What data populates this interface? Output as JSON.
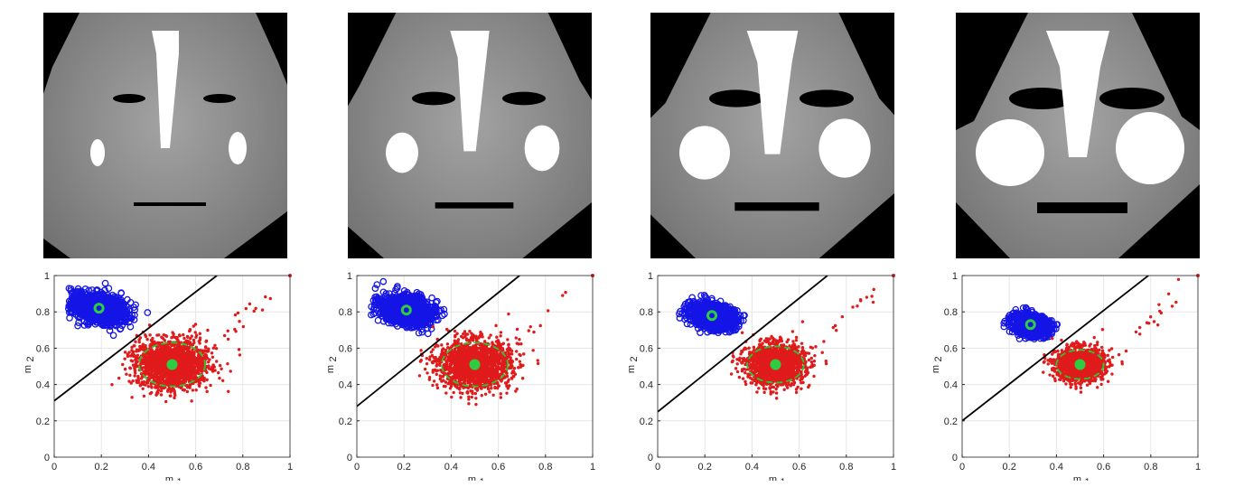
{
  "figure": {
    "panels": [
      {
        "face": "face-image-1",
        "blue_n": 1100,
        "red_n": 1900,
        "blue_center": [
          0.19,
          0.82
        ],
        "red_center": [
          0.5,
          0.51
        ],
        "blue_spread": [
          0.055,
          0.035
        ],
        "red_spread": [
          0.075,
          0.065
        ],
        "line": [
          [
            0,
            0.31
          ],
          [
            0.69,
            1.0
          ]
        ],
        "circle_r": [
          0.14,
          0.12
        ]
      },
      {
        "face": "face-image-2",
        "blue_n": 1100,
        "red_n": 1900,
        "blue_center": [
          0.21,
          0.81
        ],
        "red_center": [
          0.5,
          0.51
        ],
        "blue_spread": [
          0.055,
          0.035
        ],
        "red_spread": [
          0.075,
          0.065
        ],
        "line": [
          [
            0,
            0.28
          ],
          [
            0.69,
            1.0
          ]
        ],
        "circle_r": [
          0.14,
          0.12
        ]
      },
      {
        "face": "face-image-3",
        "blue_n": 1000,
        "red_n": 1700,
        "blue_center": [
          0.23,
          0.78
        ],
        "red_center": [
          0.5,
          0.51
        ],
        "blue_spread": [
          0.05,
          0.03
        ],
        "red_spread": [
          0.06,
          0.055
        ],
        "line": [
          [
            0,
            0.25
          ],
          [
            0.72,
            1.0
          ]
        ],
        "circle_r": [
          0.12,
          0.1
        ]
      },
      {
        "face": "face-image-4",
        "blue_n": 900,
        "red_n": 1500,
        "blue_center": [
          0.29,
          0.73
        ],
        "red_center": [
          0.5,
          0.51
        ],
        "blue_spread": [
          0.04,
          0.025
        ],
        "red_spread": [
          0.05,
          0.045
        ],
        "line": [
          [
            0,
            0.2
          ],
          [
            0.79,
            1.0
          ]
        ],
        "circle_r": [
          0.1,
          0.08
        ]
      }
    ]
  },
  "chart_data": [
    {
      "type": "scatter",
      "xlabel": "m",
      "xlabel_sub": "1",
      "ylabel": "m",
      "ylabel_sub": "2",
      "xlim": [
        0,
        1
      ],
      "ylim": [
        0,
        1
      ],
      "grid": true,
      "xticks": [
        "0",
        "0.2",
        "0.4",
        "0.6",
        "0.8",
        "1"
      ],
      "yticks": [
        "0",
        "0.2",
        "0.4",
        "0.6",
        "0.8",
        "1"
      ],
      "series": [
        {
          "marker": "blue-circles",
          "color": "#1515e6",
          "center": [
            0.19,
            0.82
          ]
        },
        {
          "marker": "red-dots",
          "color": "#e01b1b",
          "center": [
            0.5,
            0.51
          ]
        }
      ],
      "centroids": [
        [
          0.19,
          0.82
        ],
        [
          0.5,
          0.51
        ]
      ],
      "decision_line": [
        [
          0,
          0.31
        ],
        [
          0.69,
          1.0
        ]
      ],
      "outlier": [
        1.0,
        1.0
      ]
    },
    {
      "type": "scatter",
      "xlabel": "m",
      "xlabel_sub": "1",
      "ylabel": "m",
      "ylabel_sub": "2",
      "xlim": [
        0,
        1
      ],
      "ylim": [
        0,
        1
      ],
      "grid": true,
      "xticks": [
        "0",
        "0.2",
        "0.4",
        "0.6",
        "0.8",
        "1"
      ],
      "yticks": [
        "0",
        "0.2",
        "0.4",
        "0.6",
        "0.8",
        "1"
      ],
      "series": [
        {
          "marker": "blue-circles",
          "color": "#1515e6",
          "center": [
            0.21,
            0.81
          ]
        },
        {
          "marker": "red-dots",
          "color": "#e01b1b",
          "center": [
            0.5,
            0.51
          ]
        }
      ],
      "centroids": [
        [
          0.21,
          0.81
        ],
        [
          0.5,
          0.51
        ]
      ],
      "decision_line": [
        [
          0,
          0.28
        ],
        [
          0.69,
          1.0
        ]
      ],
      "outlier": [
        1.0,
        1.0
      ]
    },
    {
      "type": "scatter",
      "xlabel": "m",
      "xlabel_sub": "1",
      "ylabel": "m",
      "ylabel_sub": "2",
      "xlim": [
        0,
        1
      ],
      "ylim": [
        0,
        1
      ],
      "grid": true,
      "xticks": [
        "0",
        "0.2",
        "0.4",
        "0.6",
        "0.8",
        "1"
      ],
      "yticks": [
        "0",
        "0.2",
        "0.4",
        "0.6",
        "0.8",
        "1"
      ],
      "series": [
        {
          "marker": "blue-circles",
          "color": "#1515e6",
          "center": [
            0.23,
            0.78
          ]
        },
        {
          "marker": "red-dots",
          "color": "#e01b1b",
          "center": [
            0.5,
            0.51
          ]
        }
      ],
      "centroids": [
        [
          0.23,
          0.78
        ],
        [
          0.5,
          0.51
        ]
      ],
      "decision_line": [
        [
          0,
          0.25
        ],
        [
          0.72,
          1.0
        ]
      ],
      "outlier": [
        1.0,
        1.0
      ]
    },
    {
      "type": "scatter",
      "xlabel": "m",
      "xlabel_sub": "1",
      "ylabel": "m",
      "ylabel_sub": "2",
      "xlim": [
        0,
        1
      ],
      "ylim": [
        0,
        1
      ],
      "grid": true,
      "xticks": [
        "0",
        "0.2",
        "0.4",
        "0.6",
        "0.8",
        "1"
      ],
      "yticks": [
        "0",
        "0.2",
        "0.4",
        "0.6",
        "0.8",
        "1"
      ],
      "series": [
        {
          "marker": "blue-circles",
          "color": "#1515e6",
          "center": [
            0.29,
            0.73
          ]
        },
        {
          "marker": "red-dots",
          "color": "#e01b1b",
          "center": [
            0.5,
            0.51
          ]
        }
      ],
      "centroids": [
        [
          0.29,
          0.73
        ],
        [
          0.5,
          0.51
        ]
      ],
      "decision_line": [
        [
          0,
          0.2
        ],
        [
          0.79,
          1.0
        ]
      ],
      "outlier": [
        1.0,
        1.0
      ]
    }
  ],
  "colors": {
    "blue": "#1515e6",
    "red": "#e01b1b",
    "centroid": "#2ecc40",
    "ellipse": "#22cc33",
    "line": "#000000"
  }
}
